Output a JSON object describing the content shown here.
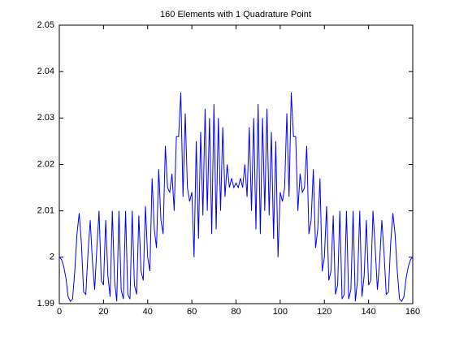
{
  "chart_data": {
    "type": "line",
    "title": "160 Elements with 1 Quadrature Point",
    "x": [
      0,
      1,
      2,
      3,
      4,
      5,
      6,
      7,
      8,
      9,
      10,
      11,
      12,
      13,
      14,
      15,
      16,
      17,
      18,
      19,
      20,
      21,
      22,
      23,
      24,
      25,
      26,
      27,
      28,
      29,
      30,
      31,
      32,
      33,
      34,
      35,
      36,
      37,
      38,
      39,
      40,
      41,
      42,
      43,
      44,
      45,
      46,
      47,
      48,
      49,
      50,
      51,
      52,
      53,
      54,
      55,
      56,
      57,
      58,
      59,
      60,
      61,
      62,
      63,
      64,
      65,
      66,
      67,
      68,
      69,
      70,
      71,
      72,
      73,
      74,
      75,
      76,
      77,
      78,
      79,
      80,
      81,
      82,
      83,
      84,
      85,
      86,
      87,
      88,
      89,
      90,
      91,
      92,
      93,
      94,
      95,
      96,
      97,
      98,
      99,
      100,
      101,
      102,
      103,
      104,
      105,
      106,
      107,
      108,
      109,
      110,
      111,
      112,
      113,
      114,
      115,
      116,
      117,
      118,
      119,
      120,
      121,
      122,
      123,
      124,
      125,
      126,
      127,
      128,
      129,
      130,
      131,
      132,
      133,
      134,
      135,
      136,
      137,
      138,
      139,
      140,
      141,
      142,
      143,
      144,
      145,
      146,
      147,
      148,
      149,
      150,
      151,
      152,
      153,
      154,
      155,
      156,
      157,
      158,
      159,
      160
    ],
    "series": [
      {
        "color": "#0000ff",
        "values": [
          2.0,
          1.9995,
          1.998,
          1.9955,
          1.9915,
          1.9905,
          1.991,
          1.997,
          2.005,
          2.0095,
          2.003,
          1.9925,
          1.992,
          2.001,
          2.008,
          1.999,
          1.993,
          2.002,
          2.01,
          1.995,
          1.994,
          2.008,
          1.996,
          1.9915,
          2.01,
          1.995,
          1.9905,
          2.01,
          1.993,
          1.991,
          2.01,
          1.992,
          1.991,
          2.01,
          1.994,
          1.992,
          2.009,
          1.997,
          1.995,
          2.011,
          2.0,
          1.997,
          2.017,
          2.006,
          2.002,
          2.019,
          2.008,
          2.005,
          2.024,
          2.015,
          2.014,
          2.018,
          2.01,
          2.026,
          2.026,
          2.0355,
          2.013,
          2.031,
          2.015,
          2.012,
          2.014,
          2.0,
          2.025,
          2.004,
          2.027,
          2.009,
          2.032,
          2.01,
          2.03,
          2.005,
          2.033,
          2.006,
          2.03,
          2.01,
          2.028,
          2.013,
          2.02,
          2.015,
          2.017,
          2.015,
          2.016,
          2.015,
          2.017,
          2.015,
          2.02,
          2.013,
          2.028,
          2.01,
          2.03,
          2.006,
          2.033,
          2.005,
          2.03,
          2.01,
          2.032,
          2.009,
          2.027,
          2.004,
          2.025,
          2.0,
          2.014,
          2.012,
          2.015,
          2.031,
          2.013,
          2.0355,
          2.026,
          2.026,
          2.01,
          2.018,
          2.014,
          2.015,
          2.024,
          2.005,
          2.008,
          2.019,
          2.002,
          2.006,
          2.017,
          1.997,
          2.0,
          2.011,
          1.995,
          1.997,
          2.009,
          1.992,
          1.994,
          2.01,
          1.991,
          1.992,
          2.01,
          1.991,
          1.993,
          2.01,
          1.9905,
          1.995,
          2.01,
          1.9915,
          1.996,
          2.008,
          1.994,
          1.995,
          2.01,
          2.002,
          1.993,
          1.999,
          2.008,
          2.001,
          1.992,
          1.9925,
          2.003,
          2.0095,
          2.005,
          1.997,
          1.991,
          1.9905,
          1.9915,
          1.9955,
          1.998,
          1.9995,
          2.0
        ]
      }
    ],
    "xlim": [
      0,
      160
    ],
    "xticks": [
      0,
      20,
      40,
      60,
      80,
      100,
      120,
      140,
      160
    ],
    "ylim": [
      1.99,
      2.05
    ],
    "yticks": [
      1.99,
      2,
      2.01,
      2.02,
      2.03,
      2.04,
      2.05
    ],
    "grid": false
  }
}
